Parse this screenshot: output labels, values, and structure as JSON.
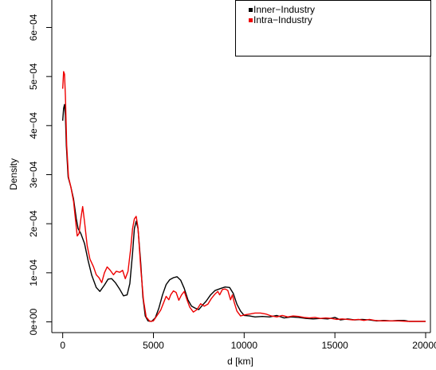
{
  "chart_data": {
    "type": "line",
    "title": "",
    "xlabel": "d [km]",
    "ylabel": "Density",
    "xlim": [
      0,
      20000
    ],
    "ylim": [
      0,
      0.00062
    ],
    "x_ticks": [
      0,
      5000,
      10000,
      15000,
      20000
    ],
    "x_tick_labels": [
      "0",
      "5000",
      "10000",
      "15000",
      "20000"
    ],
    "y_ticks": [
      0,
      0.0001,
      0.0002,
      0.0003,
      0.0004,
      0.0005,
      0.0006
    ],
    "y_tick_labels": [
      "0e+00",
      "1e−04",
      "2e−04",
      "3e−04",
      "4e−04",
      "5e−04",
      "6e−04"
    ],
    "grid": false,
    "legend": {
      "placement": "top-right"
    },
    "series": [
      {
        "name": "Inner−Industry",
        "color": "#000000",
        "points": [
          [
            0,
            0.00041
          ],
          [
            50,
            0.000435
          ],
          [
            100,
            0.000443
          ],
          [
            150,
            0.00042
          ],
          [
            200,
            0.00036
          ],
          [
            300,
            0.000295
          ],
          [
            450,
            0.000275
          ],
          [
            600,
            0.00025
          ],
          [
            750,
            0.00021
          ],
          [
            850,
            0.00019
          ],
          [
            1000,
            0.00018
          ],
          [
            1200,
            0.00016
          ],
          [
            1400,
            0.000125
          ],
          [
            1600,
            9.5e-05
          ],
          [
            1850,
            7e-05
          ],
          [
            2050,
            6.2e-05
          ],
          [
            2300,
            7.5e-05
          ],
          [
            2500,
            8.7e-05
          ],
          [
            2700,
            8.8e-05
          ],
          [
            2900,
            8e-05
          ],
          [
            3150,
            6.6e-05
          ],
          [
            3350,
            5.3e-05
          ],
          [
            3550,
            5.5e-05
          ],
          [
            3700,
            7.8e-05
          ],
          [
            3850,
            0.00014
          ],
          [
            3950,
            0.00019
          ],
          [
            4050,
            0.000205
          ],
          [
            4150,
            0.00019
          ],
          [
            4300,
            0.00012
          ],
          [
            4420,
            5e-05
          ],
          [
            4550,
            1.2e-05
          ],
          [
            4700,
            2e-06
          ],
          [
            4900,
            1e-06
          ],
          [
            5100,
            8e-06
          ],
          [
            5300,
            2.8e-05
          ],
          [
            5500,
            5.5e-05
          ],
          [
            5700,
            7.6e-05
          ],
          [
            5900,
            8.6e-05
          ],
          [
            6100,
            9e-05
          ],
          [
            6300,
            9.2e-05
          ],
          [
            6500,
            8.5e-05
          ],
          [
            6700,
            6.8e-05
          ],
          [
            6900,
            4.5e-05
          ],
          [
            7100,
            3.2e-05
          ],
          [
            7300,
            2.8e-05
          ],
          [
            7500,
            2.5e-05
          ],
          [
            7700,
            3.4e-05
          ],
          [
            7900,
            4.2e-05
          ],
          [
            8150,
            5.5e-05
          ],
          [
            8400,
            6.4e-05
          ],
          [
            8700,
            6.8e-05
          ],
          [
            8950,
            7.1e-05
          ],
          [
            9200,
            7e-05
          ],
          [
            9400,
            5.8e-05
          ],
          [
            9600,
            3.6e-05
          ],
          [
            9800,
            2.2e-05
          ],
          [
            10000,
            1.3e-05
          ],
          [
            10300,
            1.2e-05
          ],
          [
            10600,
            1e-05
          ],
          [
            11000,
            1.1e-05
          ],
          [
            11400,
            1e-05
          ],
          [
            11800,
            1.3e-05
          ],
          [
            12200,
            8e-06
          ],
          [
            12600,
            1e-05
          ],
          [
            13000,
            9e-06
          ],
          [
            13400,
            7e-06
          ],
          [
            13800,
            6e-06
          ],
          [
            14200,
            7e-06
          ],
          [
            14600,
            6e-06
          ],
          [
            15000,
            9e-06
          ],
          [
            15300,
            4e-06
          ],
          [
            15700,
            6e-06
          ],
          [
            16100,
            4e-06
          ],
          [
            16500,
            5e-06
          ],
          [
            16900,
            4e-06
          ],
          [
            17300,
            2e-06
          ],
          [
            17700,
            3e-06
          ],
          [
            18100,
            2e-06
          ],
          [
            18500,
            3e-06
          ],
          [
            18800,
            3e-06
          ],
          [
            19100,
            1e-06
          ],
          [
            19500,
            1e-06
          ],
          [
            20000,
            1e-06
          ]
        ]
      },
      {
        "name": "Intra−Industry",
        "color": "#ee0000",
        "points": [
          [
            0,
            0.000475
          ],
          [
            50,
            0.00051
          ],
          [
            100,
            0.000505
          ],
          [
            150,
            0.00046
          ],
          [
            220,
            0.00036
          ],
          [
            320,
            0.000295
          ],
          [
            450,
            0.000275
          ],
          [
            600,
            0.000245
          ],
          [
            700,
            0.00021
          ],
          [
            800,
            0.000175
          ],
          [
            900,
            0.00018
          ],
          [
            1000,
            0.00021
          ],
          [
            1100,
            0.000235
          ],
          [
            1200,
            0.000205
          ],
          [
            1350,
            0.000155
          ],
          [
            1500,
            0.000128
          ],
          [
            1700,
            0.000112
          ],
          [
            1850,
            9.6e-05
          ],
          [
            2000,
            9e-05
          ],
          [
            2150,
            8e-05
          ],
          [
            2300,
            0.0001
          ],
          [
            2450,
            0.000112
          ],
          [
            2600,
            0.000106
          ],
          [
            2800,
            9.6e-05
          ],
          [
            2950,
            0.000103
          ],
          [
            3150,
            0.000101
          ],
          [
            3300,
            0.000105
          ],
          [
            3450,
            8.8e-05
          ],
          [
            3600,
            0.000103
          ],
          [
            3750,
            0.00015
          ],
          [
            3850,
            0.00019
          ],
          [
            3950,
            0.00021
          ],
          [
            4050,
            0.000215
          ],
          [
            4150,
            0.000192
          ],
          [
            4300,
            0.00011
          ],
          [
            4450,
            4.5e-05
          ],
          [
            4600,
            1e-05
          ],
          [
            4800,
            1e-06
          ],
          [
            5000,
            2e-06
          ],
          [
            5200,
            1.3e-05
          ],
          [
            5400,
            2.4e-05
          ],
          [
            5550,
            3.8e-05
          ],
          [
            5700,
            5.2e-05
          ],
          [
            5850,
            4.5e-05
          ],
          [
            5950,
            5.5e-05
          ],
          [
            6100,
            6.3e-05
          ],
          [
            6250,
            6e-05
          ],
          [
            6400,
            4.4e-05
          ],
          [
            6550,
            5.5e-05
          ],
          [
            6700,
            6.2e-05
          ],
          [
            6850,
            4.5e-05
          ],
          [
            7000,
            3e-05
          ],
          [
            7200,
            2e-05
          ],
          [
            7400,
            2.5e-05
          ],
          [
            7600,
            3.7e-05
          ],
          [
            7800,
            3.2e-05
          ],
          [
            8000,
            3.6e-05
          ],
          [
            8200,
            4.8e-05
          ],
          [
            8400,
            5.7e-05
          ],
          [
            8550,
            6.2e-05
          ],
          [
            8650,
            5.5e-05
          ],
          [
            8800,
            6.6e-05
          ],
          [
            8950,
            6.7e-05
          ],
          [
            9100,
            6.4e-05
          ],
          [
            9250,
            4.5e-05
          ],
          [
            9350,
            5.5e-05
          ],
          [
            9450,
            4e-05
          ],
          [
            9600,
            2.2e-05
          ],
          [
            9800,
            1.2e-05
          ],
          [
            10000,
            1.4e-05
          ],
          [
            10300,
            1.6e-05
          ],
          [
            10600,
            1.8e-05
          ],
          [
            10900,
            1.8e-05
          ],
          [
            11200,
            1.6e-05
          ],
          [
            11500,
            1.2e-05
          ],
          [
            11800,
            1e-05
          ],
          [
            12100,
            1.3e-05
          ],
          [
            12400,
            1e-05
          ],
          [
            12700,
            1.2e-05
          ],
          [
            13000,
            1.1e-05
          ],
          [
            13300,
            9e-06
          ],
          [
            13600,
            8e-06
          ],
          [
            13900,
            9e-06
          ],
          [
            14200,
            7e-06
          ],
          [
            14500,
            8e-06
          ],
          [
            14800,
            7e-06
          ],
          [
            15100,
            5e-06
          ],
          [
            15400,
            6e-06
          ],
          [
            15700,
            5e-06
          ],
          [
            16000,
            4e-06
          ],
          [
            16300,
            5e-06
          ],
          [
            16600,
            3e-06
          ],
          [
            16900,
            5e-06
          ],
          [
            17200,
            3e-06
          ],
          [
            17600,
            2e-06
          ],
          [
            18000,
            2e-06
          ],
          [
            18500,
            2e-06
          ],
          [
            19000,
            1e-06
          ],
          [
            19500,
            1e-06
          ],
          [
            20000,
            1e-06
          ]
        ]
      }
    ]
  }
}
